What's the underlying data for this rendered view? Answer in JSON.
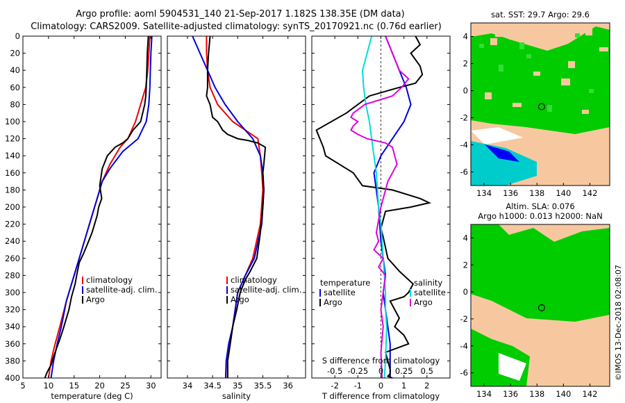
{
  "title": {
    "line1": "Argo profile: aoml 5904531_140 21-Sep-2017 1.182S 138.35E (DM data)",
    "line2": "Climatology: CARS2009. Satellite-adjusted climatology: synTS_20170921.nc (0.76d earlier)"
  },
  "colors": {
    "climatology": "#ee0000",
    "satellite": "#0000dd",
    "argo": "#000000",
    "sat_salinity": "#00dddd",
    "argo_salinity": "#dd00dd",
    "land": "#f7c8a0",
    "ocean": "#00cc00",
    "green_light": "#33dd33",
    "blue": "#0000ff",
    "cyan": "#00cccc",
    "white": "#ffffff"
  },
  "chart_data": [
    {
      "type": "line",
      "id": "temperature",
      "xlabel": "temperature (deg C)",
      "xlim": [
        5,
        32
      ],
      "ylim": [
        400,
        0
      ],
      "x_ticks": [
        5,
        10,
        15,
        20,
        25,
        30
      ],
      "y_ticks": [
        0,
        20,
        40,
        60,
        80,
        100,
        120,
        140,
        160,
        180,
        200,
        220,
        240,
        260,
        280,
        300,
        320,
        340,
        360,
        380,
        400
      ],
      "series": [
        {
          "name": "climatology",
          "color": "#ee0000",
          "x": [
            29.8,
            29.6,
            29.4,
            29.0,
            28.0,
            27.0,
            25.5,
            24.0,
            22.0,
            20.5,
            19.5,
            18.0,
            16.5,
            15.0,
            13.5,
            12.2,
            11.3,
            10.5,
            10.0
          ],
          "y": [
            0,
            20,
            40,
            60,
            80,
            100,
            120,
            130,
            150,
            170,
            190,
            220,
            250,
            280,
            310,
            340,
            360,
            380,
            400
          ]
        },
        {
          "name": "satellite-adj. clim.",
          "color": "#0000dd",
          "x": [
            30.2,
            30.0,
            29.9,
            29.8,
            29.6,
            29.1,
            27.5,
            24.5,
            22.0,
            20.5,
            19.5,
            18.0,
            16.5,
            15.0,
            13.5,
            12.5,
            11.7,
            11.0,
            10.5
          ],
          "y": [
            0,
            20,
            40,
            60,
            80,
            100,
            120,
            135,
            155,
            170,
            190,
            220,
            250,
            280,
            310,
            340,
            360,
            380,
            400
          ]
        },
        {
          "name": "Argo",
          "color": "#000000",
          "x": [
            29.5,
            29.3,
            29.2,
            29.1,
            29.0,
            28.8,
            28.0,
            26.5,
            25.5,
            24.5,
            23.0,
            21.5,
            20.5,
            20.0,
            20.4,
            19.8,
            19.5,
            19.0,
            18.5,
            17.5,
            16.8,
            16.0,
            15.5,
            15.2,
            14.5,
            14.0,
            13.0,
            12.2,
            11.6,
            11.0,
            10.5,
            10.0,
            9.6,
            9.3
          ],
          "y": [
            0,
            20,
            40,
            60,
            70,
            80,
            100,
            110,
            120,
            125,
            130,
            140,
            155,
            175,
            190,
            200,
            210,
            220,
            230,
            245,
            255,
            265,
            280,
            290,
            305,
            320,
            340,
            355,
            365,
            375,
            385,
            390,
            395,
            400
          ]
        }
      ],
      "legend": [
        "climatology",
        "satellite-adj. clim.",
        "Argo"
      ]
    },
    {
      "type": "line",
      "id": "salinity",
      "xlabel": "salinity",
      "xlim": [
        33.6,
        36.35
      ],
      "ylim": [
        400,
        0
      ],
      "x_ticks": [
        34,
        34.5,
        35,
        35.5,
        36
      ],
      "series": [
        {
          "name": "climatology",
          "color": "#ee0000",
          "x": [
            34.38,
            34.38,
            34.4,
            34.45,
            34.6,
            34.9,
            35.4,
            35.45,
            35.48,
            35.5,
            35.45,
            35.3,
            35.15,
            35.0,
            34.9,
            34.85,
            34.8,
            34.8
          ],
          "y": [
            0,
            20,
            40,
            60,
            80,
            100,
            120,
            140,
            160,
            180,
            220,
            260,
            280,
            300,
            340,
            360,
            380,
            400
          ]
        },
        {
          "name": "satellite-adj. clim.",
          "color": "#0000dd",
          "x": [
            34.1,
            34.25,
            34.4,
            34.55,
            34.75,
            35.0,
            35.3,
            35.45,
            35.5,
            35.52,
            35.48,
            35.33,
            35.15,
            35.0,
            34.9,
            34.82,
            34.77,
            34.76
          ],
          "y": [
            0,
            20,
            40,
            60,
            80,
            100,
            120,
            140,
            160,
            180,
            220,
            260,
            280,
            300,
            340,
            360,
            380,
            400
          ]
        },
        {
          "name": "Argo",
          "color": "#000000",
          "x": [
            34.45,
            34.42,
            34.4,
            34.4,
            34.38,
            34.45,
            34.5,
            34.6,
            34.7,
            34.8,
            35.0,
            35.2,
            35.4,
            35.55,
            35.52,
            35.5,
            35.52,
            35.5,
            35.45,
            35.38,
            35.25,
            35.15,
            35.05,
            34.98,
            34.9,
            34.85,
            34.8,
            34.8
          ],
          "y": [
            0,
            20,
            40,
            60,
            70,
            80,
            95,
            100,
            110,
            115,
            120,
            122,
            125,
            130,
            150,
            160,
            180,
            200,
            230,
            260,
            275,
            285,
            300,
            320,
            340,
            360,
            380,
            400
          ]
        }
      ],
      "legend": [
        "climatology",
        "satellite-adj. clim.",
        "Argo"
      ]
    },
    {
      "type": "line",
      "id": "differences",
      "xlabel": "T difference from climatology",
      "xlabel_top": "S difference from climatology",
      "xlim": [
        -3.0,
        3.0
      ],
      "ylim": [
        400,
        0
      ],
      "x_ticks": [
        -2,
        -1,
        0,
        1,
        2
      ],
      "x_ticks_top_labels": [
        "-0.5",
        "-0.25",
        "0",
        "0.25",
        "0.5"
      ],
      "x_ticks_top_values": [
        -2,
        -1,
        0,
        1,
        2
      ],
      "series": [
        {
          "name": "temperature satellite",
          "color": "#0000dd",
          "x": [
            0.2,
            0.5,
            0.8,
            1.1,
            1.3,
            1.0,
            0.5,
            0.0,
            -0.3,
            -0.2,
            -0.1,
            0.0,
            0.1,
            0.2,
            0.1,
            0.2,
            0.3,
            0.4,
            0.4,
            0.4
          ],
          "y": [
            0,
            20,
            40,
            60,
            80,
            100,
            120,
            140,
            160,
            180,
            200,
            240,
            260,
            280,
            300,
            320,
            340,
            360,
            380,
            400
          ]
        },
        {
          "name": "temperature Argo",
          "color": "#000000",
          "x": [
            1.5,
            1.7,
            1.3,
            1.7,
            1.8,
            1.5,
            0.8,
            -0.5,
            -1.5,
            -2.8,
            -2.5,
            -2.4,
            -1.5,
            -1.2,
            -0.8,
            0.5,
            1.7,
            2.1,
            1.3,
            0.2,
            0.0,
            0.1,
            0.3,
            0.8,
            1.2,
            1.4,
            1.2,
            1.0,
            0.4,
            0.6,
            0.8,
            0.6,
            1.0,
            1.2,
            0.2,
            0.3,
            0.4,
            0.4,
            0.3,
            0.5
          ],
          "y": [
            0,
            10,
            20,
            35,
            45,
            55,
            60,
            70,
            90,
            110,
            130,
            140,
            155,
            160,
            175,
            180,
            190,
            195,
            200,
            205,
            225,
            235,
            260,
            275,
            285,
            290,
            300,
            305,
            310,
            320,
            330,
            340,
            350,
            360,
            370,
            380,
            390,
            395,
            398,
            400
          ]
        },
        {
          "name": "salinity satellite",
          "color": "#00dddd",
          "x": [
            -0.4,
            -0.6,
            -0.8,
            -0.75,
            -0.65,
            -0.5,
            -0.4,
            -0.3,
            -0.2,
            -0.15,
            -0.1,
            0.0,
            0.05,
            0.1,
            0.15,
            0.2,
            0.2,
            0.25,
            0.2,
            0.15
          ],
          "y": [
            0,
            20,
            40,
            60,
            80,
            100,
            120,
            140,
            160,
            180,
            200,
            220,
            240,
            260,
            280,
            300,
            320,
            340,
            380,
            400
          ]
        },
        {
          "name": "salinity Argo",
          "color": "#dd00dd",
          "x": [
            0.2,
            0.5,
            0.8,
            1.2,
            0.9,
            0.5,
            -0.7,
            -1.2,
            -1.3,
            -1.0,
            -1.2,
            -1.3,
            -1.0,
            -0.6,
            0.2,
            0.5,
            0.6,
            0.7,
            0.5,
            0.3,
            0.0,
            -0.2,
            -0.1,
            -0.3,
            0.1,
            -0.1,
            0.2,
            0.1,
            0.0,
            0.1,
            0.0,
            0.05
          ],
          "y": [
            0,
            20,
            40,
            50,
            60,
            70,
            80,
            90,
            95,
            100,
            105,
            110,
            115,
            120,
            125,
            130,
            140,
            150,
            160,
            170,
            200,
            230,
            240,
            250,
            260,
            270,
            280,
            300,
            320,
            340,
            370,
            400
          ]
        }
      ],
      "legend_left": {
        "header": "temperature",
        "items": [
          "satellite",
          "Argo"
        ]
      },
      "legend_right": {
        "header": "salinity",
        "items": [
          "satellite",
          "Argo"
        ]
      }
    }
  ],
  "maps": [
    {
      "title": "sat. SST: 29.7 Argo: 29.6",
      "x_ticks": [
        134,
        136,
        138,
        140,
        142
      ],
      "y_ticks": [
        4,
        2,
        0,
        -2,
        -4,
        -6
      ],
      "xlim": [
        133,
        143.5
      ],
      "ylim": [
        -7,
        5
      ],
      "argo_position": {
        "lon": 138.35,
        "lat": -1.182
      }
    },
    {
      "title_line1": "Altim. SLA: 0.076",
      "title_line2": "Argo h1000: 0.013 h2000: NaN",
      "x_ticks": [
        134,
        136,
        138,
        140,
        142
      ],
      "y_ticks": [
        4,
        2,
        0,
        -2,
        -4,
        -6
      ],
      "xlim": [
        133,
        143.5
      ],
      "ylim": [
        -7,
        5
      ],
      "argo_position": {
        "lon": 138.35,
        "lat": -1.182
      }
    }
  ],
  "footer": "©IMOS 13-Dec-2018 02:08:07"
}
